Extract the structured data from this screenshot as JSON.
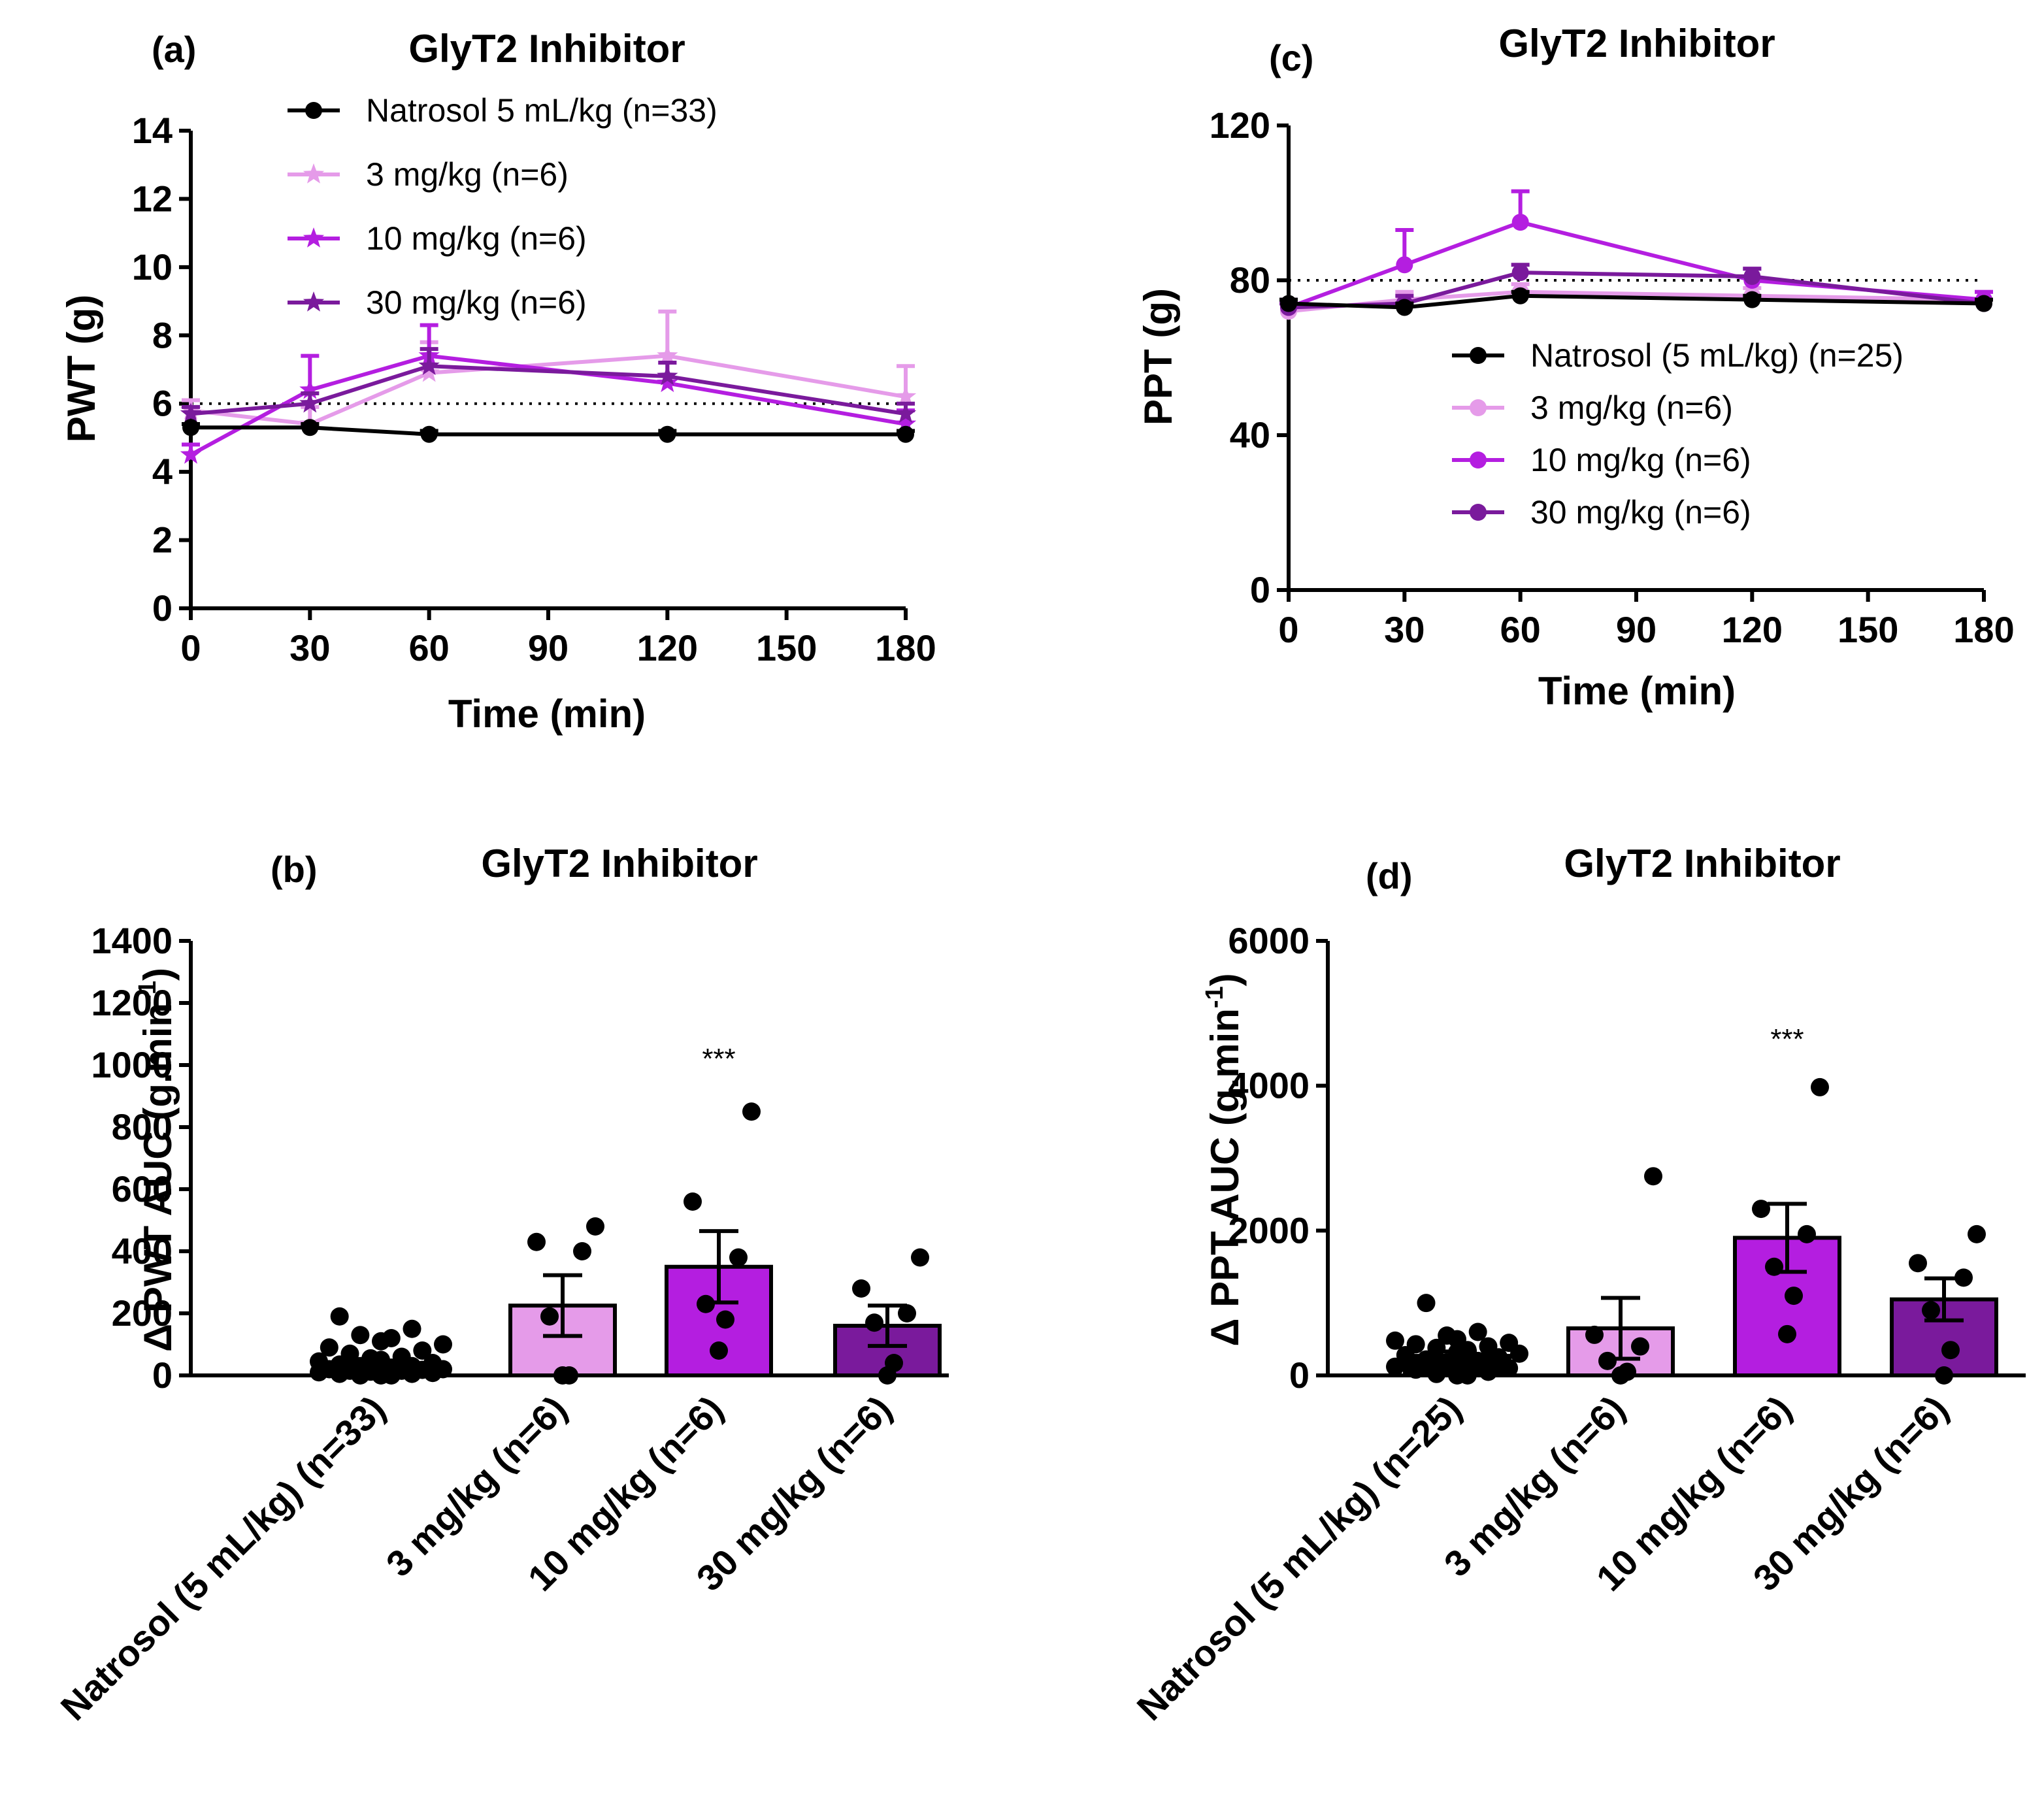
{
  "chart_data": [
    {
      "id": "a",
      "type": "line",
      "panel_label": "(a)",
      "title": "GlyT2 Inhibitor",
      "xlabel": "Time (min)",
      "ylabel": "PWT (g)",
      "x": [
        0,
        30,
        60,
        120,
        180
      ],
      "xticks": [
        "0",
        "30",
        "60",
        "90",
        "120",
        "150",
        "180"
      ],
      "xlim": [
        0,
        180
      ],
      "yticks": [
        "0",
        "2",
        "4",
        "6",
        "8",
        "10",
        "12",
        "14"
      ],
      "ylim": [
        0,
        14
      ],
      "reference_line": 6,
      "legend_position": "top",
      "series": [
        {
          "name": "Natrosol 5 mL/kg (n=33)",
          "color": "#000000",
          "marker": "circle",
          "values": [
            5.3,
            5.3,
            5.1,
            5.1,
            5.1
          ],
          "sem": [
            0.1,
            0.1,
            0.1,
            0.1,
            0.1
          ]
        },
        {
          "name": "3 mg/kg (n=6)",
          "color": "#e59be9",
          "marker": "star",
          "values": [
            5.8,
            5.4,
            6.9,
            7.4,
            6.2
          ],
          "sem": [
            0.3,
            0.5,
            0.9,
            1.3,
            0.9
          ]
        },
        {
          "name": "10 mg/kg (n=6)",
          "color": "#b41ee0",
          "marker": "star",
          "values": [
            4.5,
            6.4,
            7.4,
            6.6,
            5.4
          ],
          "sem": [
            0.3,
            1.0,
            0.9,
            0.6,
            0.4
          ]
        },
        {
          "name": "30 mg/kg (n=6)",
          "color": "#7a1a9c",
          "marker": "star",
          "values": [
            5.7,
            6.0,
            7.1,
            6.8,
            5.7
          ],
          "sem": [
            0.2,
            0.3,
            0.5,
            0.4,
            0.3
          ]
        }
      ]
    },
    {
      "id": "c",
      "type": "line",
      "panel_label": "(c)",
      "title": "GlyT2 Inhibitor",
      "xlabel": "Time (min)",
      "ylabel": "PPT (g)",
      "x": [
        0,
        30,
        60,
        120,
        180
      ],
      "xticks": [
        "0",
        "30",
        "60",
        "90",
        "120",
        "150",
        "180"
      ],
      "xlim": [
        0,
        180
      ],
      "yticks": [
        "0",
        "40",
        "80",
        "120"
      ],
      "ylim": [
        0,
        120
      ],
      "reference_line": 80,
      "legend_position": "bottom-right",
      "series": [
        {
          "name": "Natrosol (5 mL/kg) (n=25)",
          "color": "#000000",
          "marker": "circle",
          "values": [
            74,
            73,
            76,
            75,
            74
          ],
          "sem": [
            1,
            1,
            1,
            1,
            1
          ]
        },
        {
          "name": "3 mg/kg (n=6)",
          "color": "#e59be9",
          "marker": "circle",
          "values": [
            72,
            75,
            77,
            76,
            75
          ],
          "sem": [
            2,
            2,
            2,
            2,
            2
          ]
        },
        {
          "name": "10 mg/kg (n=6)",
          "color": "#b41ee0",
          "marker": "circle",
          "values": [
            73,
            84,
            95,
            80,
            75
          ],
          "sem": [
            2,
            9,
            8,
            3,
            2
          ]
        },
        {
          "name": "30 mg/kg (n=6)",
          "color": "#7a1a9c",
          "marker": "circle",
          "values": [
            73,
            74,
            82,
            81,
            74
          ],
          "sem": [
            1,
            2,
            2,
            2,
            1
          ]
        }
      ]
    },
    {
      "id": "b",
      "type": "bar",
      "panel_label": "(b)",
      "title": "GlyT2 Inhibitor",
      "ylabel": "Δ PWT AUC (g.min",
      "ylabel_sup": "-1",
      "ylabel_close": ")",
      "categories": [
        "Natrosol (5 mL/kg) (n=33)",
        "3 mg/kg (n=6)",
        "10 mg/kg (n=6)",
        "30 mg/kg (n=6)"
      ],
      "colors": [
        "#000000",
        "#e59be9",
        "#b41ee0",
        "#7a1a9c"
      ],
      "values": [
        20,
        225,
        350,
        160
      ],
      "sem": [
        8,
        98,
        115,
        65
      ],
      "points": [
        [
          0,
          0,
          0,
          5,
          5,
          8,
          10,
          10,
          12,
          15,
          15,
          18,
          20,
          20,
          25,
          25,
          30,
          30,
          35,
          40,
          45,
          50,
          55,
          60,
          70,
          80,
          90,
          100,
          110,
          120,
          130,
          150,
          190
        ],
        [
          0,
          0,
          190,
          400,
          430,
          480
        ],
        [
          80,
          180,
          230,
          380,
          560,
          850
        ],
        [
          0,
          40,
          170,
          200,
          280,
          380
        ]
      ],
      "significance": [
        "",
        "",
        "***",
        ""
      ],
      "yticks": [
        "0",
        "200",
        "400",
        "600",
        "800",
        "1000",
        "1200",
        "1400"
      ],
      "ylim": [
        0,
        1400
      ]
    },
    {
      "id": "d",
      "type": "bar",
      "panel_label": "(d)",
      "title": "GlyT2 Inhibitor",
      "ylabel": "Δ PPT AUC (g.min",
      "ylabel_sup": "-1",
      "ylabel_close": ")",
      "categories": [
        "Natrosol (5 mL/kg) (n=25)",
        "3 mg/kg (n=6)",
        "10 mg/kg (n=6)",
        "30 mg/kg (n=6)"
      ],
      "colors": [
        "#000000",
        "#e59be9",
        "#b41ee0",
        "#7a1a9c"
      ],
      "values": [
        270,
        650,
        1900,
        1050
      ],
      "sem": [
        60,
        420,
        470,
        290
      ],
      "points": [
        [
          0,
          0,
          20,
          50,
          80,
          100,
          120,
          150,
          180,
          200,
          220,
          250,
          280,
          300,
          320,
          350,
          380,
          400,
          430,
          450,
          480,
          500,
          550,
          600,
          1000
        ],
        [
          0,
          50,
          200,
          400,
          560,
          2750
        ],
        [
          570,
          1100,
          1500,
          1950,
          2300,
          3980
        ],
        [
          0,
          350,
          900,
          1350,
          1550,
          1950
        ]
      ],
      "significance": [
        "",
        "",
        "***",
        ""
      ],
      "yticks": [
        "0",
        "2000",
        "4000",
        "6000"
      ],
      "ylim": [
        0,
        6000
      ]
    }
  ]
}
